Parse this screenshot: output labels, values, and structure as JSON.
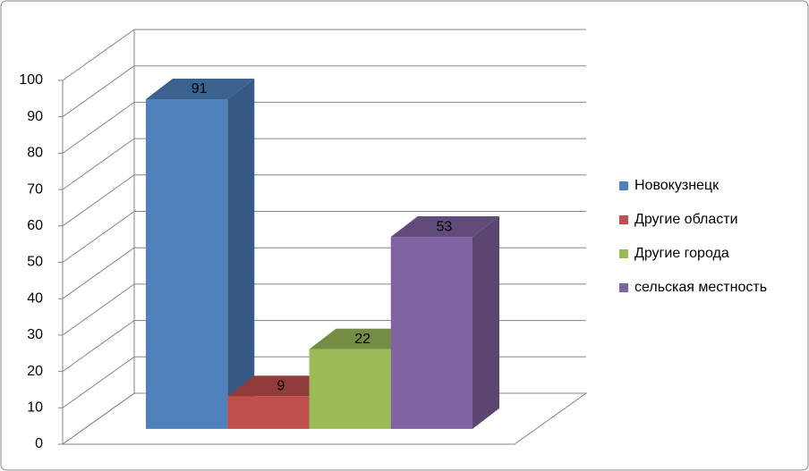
{
  "chart_data": {
    "type": "bar3d",
    "categories": [
      null
    ],
    "series": [
      {
        "name": "Новокузнецк",
        "color": "#4f81bd",
        "values": [
          91
        ]
      },
      {
        "name": "Другие области",
        "color": "#c0504d",
        "values": [
          9
        ]
      },
      {
        "name": "Другие города",
        "color": "#9bbb59",
        "values": [
          22
        ]
      },
      {
        "name": "сельская местность",
        "color": "#8064a2",
        "values": [
          53
        ]
      }
    ],
    "ylim": [
      0,
      100
    ],
    "yticks": [
      0,
      10,
      20,
      30,
      40,
      50,
      60,
      70,
      80,
      90,
      100
    ],
    "grid": true,
    "legend": "right"
  }
}
